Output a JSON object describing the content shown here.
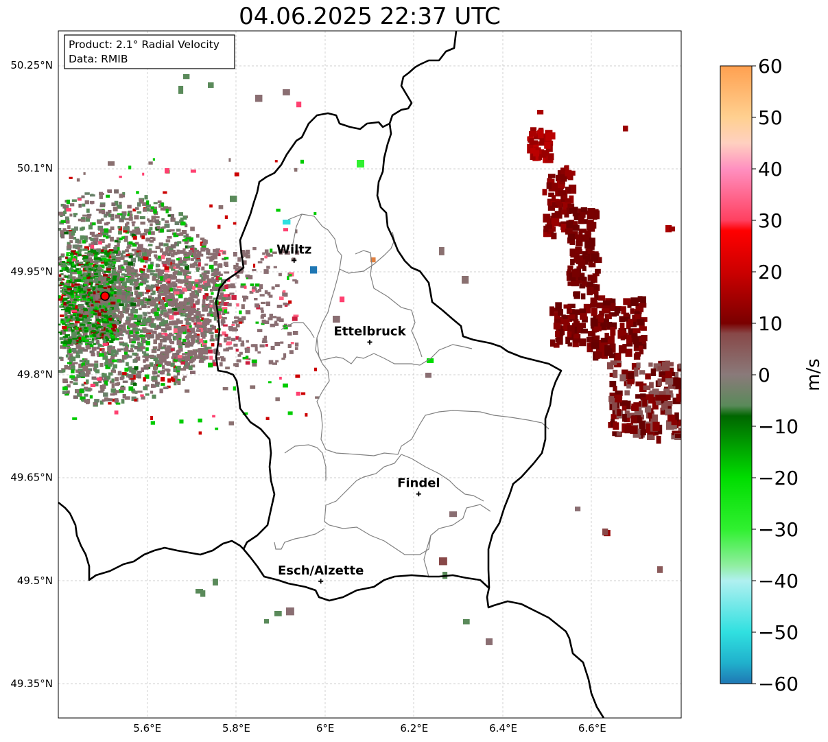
{
  "title": "04.06.2025 22:37 UTC",
  "info_box": {
    "product": "Product: 2.1° Radial Velocity",
    "data": "Data: RMIB"
  },
  "lat_ticks": [
    "50.25°N",
    "50.1°N",
    "49.95°N",
    "49.8°N",
    "49.65°N",
    "49.5°N",
    "49.35°N"
  ],
  "lon_ticks": [
    "5.6°E",
    "5.8°E",
    "6°E",
    "6.2°E",
    "6.4°E",
    "6.6°E"
  ],
  "cities": [
    {
      "name": "Wiltz",
      "lon": 5.93,
      "lat": 49.966
    },
    {
      "name": "Ettelbruck",
      "lon": 6.1,
      "lat": 49.847
    },
    {
      "name": "Findel",
      "lon": 6.21,
      "lat": 49.626
    },
    {
      "name": "Esch/Alzette",
      "lon": 5.99,
      "lat": 49.499
    }
  ],
  "radar_site": {
    "lon": 5.505,
    "lat": 49.914,
    "color": "#ff0000"
  },
  "map_extent": {
    "lon_min": 5.4,
    "lon_max": 6.8,
    "lat_min": 49.3,
    "lat_max": 50.3
  },
  "colorbar": {
    "label": "m/s",
    "min": -60,
    "max": 60,
    "ticks": [
      "60",
      "50",
      "40",
      "30",
      "20",
      "10",
      "0",
      "−10",
      "−20",
      "−30",
      "−40",
      "−50",
      "−60"
    ],
    "stops": [
      {
        "v": -60,
        "c": "#1f77b4"
      },
      {
        "v": -56,
        "c": "#20b0cc"
      },
      {
        "v": -50,
        "c": "#30e0e0"
      },
      {
        "v": -40,
        "c": "#b0f0f0"
      },
      {
        "v": -37,
        "c": "#90eea0"
      },
      {
        "v": -30,
        "c": "#30f030"
      },
      {
        "v": -20,
        "c": "#00dd00"
      },
      {
        "v": -8,
        "c": "#006600"
      },
      {
        "v": -6,
        "c": "#5a8a5a"
      },
      {
        "v": 0,
        "c": "#8a7a7a"
      },
      {
        "v": 8,
        "c": "#884848"
      },
      {
        "v": 10,
        "c": "#7a0000"
      },
      {
        "v": 20,
        "c": "#cc0000"
      },
      {
        "v": 28,
        "c": "#ff0000"
      },
      {
        "v": 30,
        "c": "#ff4060"
      },
      {
        "v": 40,
        "c": "#ff90c0"
      },
      {
        "v": 45,
        "c": "#ffd0c0"
      },
      {
        "v": 50,
        "c": "#ffd090"
      },
      {
        "v": 60,
        "c": "#ffa050"
      }
    ]
  },
  "colors": {
    "velocity_negative": "#5a8a5a",
    "velocity_zero": "#8a7070",
    "velocity_positive": "#7a0000",
    "border": "#000000",
    "canton_borders": "#808080",
    "grid": "#c0c0c0"
  }
}
